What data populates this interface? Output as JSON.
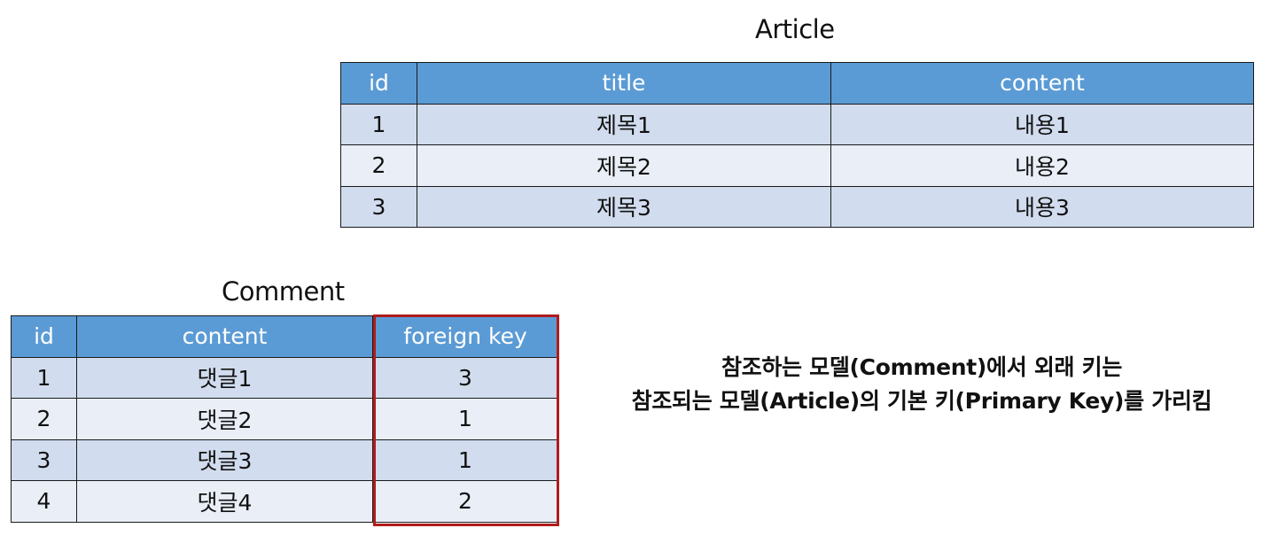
{
  "article": {
    "title": "Article",
    "columns": [
      "id",
      "title",
      "content"
    ],
    "rows": [
      [
        "1",
        "제목1",
        "내용1"
      ],
      [
        "2",
        "제목2",
        "내용2"
      ],
      [
        "3",
        "제목3",
        "내용3"
      ]
    ]
  },
  "comment": {
    "title": "Comment",
    "columns": [
      "id",
      "content",
      "foreign key"
    ],
    "rows": [
      [
        "1",
        "댓글1",
        "3"
      ],
      [
        "2",
        "댓글2",
        "1"
      ],
      [
        "3",
        "댓글3",
        "1"
      ],
      [
        "4",
        "댓글4",
        "2"
      ]
    ]
  },
  "note": {
    "line1": "참조하는 모델(Comment)에서 외래 키는",
    "line2": "참조되는 모델(Article)의 기본 키(Primary Key)를 가리킴"
  },
  "colors": {
    "header_bg": "#5b9bd5",
    "row_dark": "#d1dcee",
    "row_light": "#e9eef7",
    "highlight_border": "#b01c1c"
  }
}
